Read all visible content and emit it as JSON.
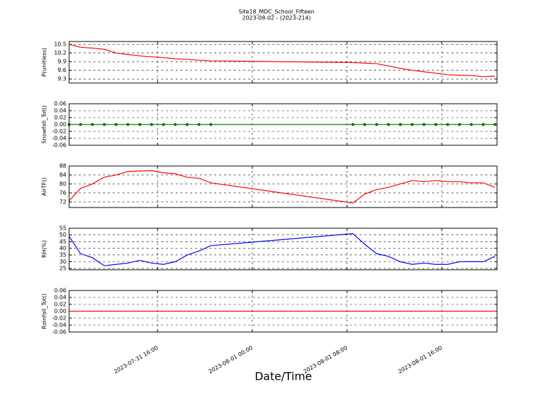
{
  "title": "Site18_MDC_School_Fifteen",
  "subtitle": "2023-08-02 - (2023-214)",
  "x_label": "Date/Time",
  "xlim": [
    "2023-07-31 08:32",
    "2023-08-01 20:40"
  ],
  "xticks": [
    "2023-07-31 16:00",
    "2023-08-01 00:00",
    "2023-08-01 08:00",
    "2023-08-01 16:00"
  ],
  "grid": true,
  "chart_data": [
    {
      "type": "line",
      "y_label": "P(unitless)",
      "ylim": [
        9.16,
        10.6
      ],
      "yticks": [
        9.3,
        9.6,
        9.9,
        10.2,
        10.5
      ],
      "x": [
        "2023-07-31 08:32",
        "2023-07-31 09:30",
        "2023-07-31 10:30",
        "2023-07-31 11:30",
        "2023-07-31 12:30",
        "2023-07-31 13:30",
        "2023-07-31 14:30",
        "2023-07-31 15:30",
        "2023-07-31 16:30",
        "2023-07-31 17:30",
        "2023-07-31 18:30",
        "2023-07-31 19:30",
        "2023-07-31 20:30",
        "2023-08-01 08:30",
        "2023-08-01 09:30",
        "2023-08-01 10:30",
        "2023-08-01 11:30",
        "2023-08-01 12:30",
        "2023-08-01 13:30",
        "2023-08-01 14:30",
        "2023-08-01 15:30",
        "2023-08-01 16:30",
        "2023-08-01 17:30",
        "2023-08-01 18:30",
        "2023-08-01 19:30",
        "2023-08-01 20:30"
      ],
      "series": [
        {
          "color": "#ff0000",
          "markers": false,
          "values": [
            10.5,
            10.4,
            10.37,
            10.33,
            10.2,
            10.15,
            10.1,
            10.07,
            10.04,
            10.0,
            9.98,
            9.95,
            9.93,
            9.87,
            9.85,
            9.83,
            9.75,
            9.67,
            9.6,
            9.55,
            9.5,
            9.45,
            9.43,
            9.42,
            9.38,
            9.4
          ]
        }
      ]
    },
    {
      "type": "line",
      "y_label": "Snowfall_Tot()",
      "ylim": [
        -0.06,
        0.06
      ],
      "yticks": [
        -0.06,
        -0.04,
        -0.02,
        {
          "value": 0,
          "label": "0.00"
        },
        0.02,
        0.04,
        0.06
      ],
      "x": [
        "2023-07-31 08:32",
        "2023-07-31 09:30",
        "2023-07-31 10:30",
        "2023-07-31 11:30",
        "2023-07-31 12:30",
        "2023-07-31 13:30",
        "2023-07-31 14:30",
        "2023-07-31 15:30",
        "2023-07-31 16:30",
        "2023-07-31 17:30",
        "2023-07-31 18:30",
        "2023-07-31 19:30",
        "2023-07-31 20:30",
        "2023-08-01 08:30",
        "2023-08-01 09:30",
        "2023-08-01 10:30",
        "2023-08-01 11:30",
        "2023-08-01 12:30",
        "2023-08-01 13:30",
        "2023-08-01 14:30",
        "2023-08-01 15:30",
        "2023-08-01 16:30",
        "2023-08-01 17:30",
        "2023-08-01 18:30",
        "2023-08-01 19:30",
        "2023-08-01 20:30"
      ],
      "series": [
        {
          "color": "#008000",
          "markers": true,
          "values": [
            0,
            0,
            0,
            0,
            0,
            0,
            0,
            0,
            0,
            0,
            0,
            0,
            0,
            0,
            0,
            0,
            0,
            0,
            0,
            0,
            0,
            0,
            0,
            0,
            0,
            0
          ]
        }
      ]
    },
    {
      "type": "line",
      "y_label": "AirTF()",
      "ylim": [
        69.5,
        88
      ],
      "yticks": [
        72,
        76,
        80,
        84,
        88
      ],
      "x": [
        "2023-07-31 08:32",
        "2023-07-31 09:30",
        "2023-07-31 10:30",
        "2023-07-31 11:30",
        "2023-07-31 12:30",
        "2023-07-31 13:30",
        "2023-07-31 14:30",
        "2023-07-31 15:30",
        "2023-07-31 16:30",
        "2023-07-31 17:30",
        "2023-07-31 18:30",
        "2023-07-31 19:30",
        "2023-07-31 20:30",
        "2023-08-01 08:30",
        "2023-08-01 09:30",
        "2023-08-01 10:30",
        "2023-08-01 11:30",
        "2023-08-01 12:30",
        "2023-08-01 13:30",
        "2023-08-01 14:30",
        "2023-08-01 15:30",
        "2023-08-01 16:30",
        "2023-08-01 17:30",
        "2023-08-01 18:30",
        "2023-08-01 19:30",
        "2023-08-01 20:30"
      ],
      "series": [
        {
          "color": "#ff0000",
          "markers": false,
          "values": [
            72.5,
            78,
            80,
            83,
            84,
            85.5,
            85.8,
            86,
            85,
            84.5,
            83,
            82.5,
            80.5,
            71.5,
            75.5,
            77.5,
            78.5,
            80,
            81.5,
            81,
            81.5,
            81,
            81,
            80.5,
            80.5,
            78.5
          ]
        }
      ]
    },
    {
      "type": "line",
      "y_label": "RH(%)",
      "ylim": [
        24,
        55
      ],
      "yticks": [
        25,
        30,
        35,
        40,
        45,
        50,
        55
      ],
      "x": [
        "2023-07-31 08:32",
        "2023-07-31 09:30",
        "2023-07-31 10:30",
        "2023-07-31 11:30",
        "2023-07-31 12:30",
        "2023-07-31 13:30",
        "2023-07-31 14:30",
        "2023-07-31 15:30",
        "2023-07-31 16:30",
        "2023-07-31 17:30",
        "2023-07-31 18:30",
        "2023-07-31 19:30",
        "2023-07-31 20:30",
        "2023-08-01 08:30",
        "2023-08-01 09:30",
        "2023-08-01 10:30",
        "2023-08-01 11:30",
        "2023-08-01 12:30",
        "2023-08-01 13:30",
        "2023-08-01 14:30",
        "2023-08-01 15:30",
        "2023-08-01 16:30",
        "2023-08-01 17:30",
        "2023-08-01 18:30",
        "2023-08-01 19:30",
        "2023-08-01 20:30"
      ],
      "series": [
        {
          "color": "#0000ff",
          "markers": false,
          "values": [
            49,
            36,
            33,
            27,
            28,
            29,
            31,
            29,
            28,
            30,
            35,
            38,
            42,
            51,
            43,
            36,
            34,
            30,
            28,
            29,
            28,
            28,
            30,
            30,
            30,
            34
          ]
        }
      ]
    },
    {
      "type": "line",
      "y_label": "Rainfall_Tot()",
      "ylim": [
        -0.06,
        0.06
      ],
      "yticks": [
        -0.06,
        -0.04,
        -0.02,
        {
          "value": 0,
          "label": "0.00"
        },
        0.02,
        0.04,
        0.06
      ],
      "x": [
        "2023-07-31 08:32",
        "2023-07-31 09:30",
        "2023-07-31 10:30",
        "2023-07-31 11:30",
        "2023-07-31 12:30",
        "2023-07-31 13:30",
        "2023-07-31 14:30",
        "2023-07-31 15:30",
        "2023-07-31 16:30",
        "2023-07-31 17:30",
        "2023-07-31 18:30",
        "2023-07-31 19:30",
        "2023-07-31 20:30",
        "2023-08-01 08:30",
        "2023-08-01 09:30",
        "2023-08-01 10:30",
        "2023-08-01 11:30",
        "2023-08-01 12:30",
        "2023-08-01 13:30",
        "2023-08-01 14:30",
        "2023-08-01 15:30",
        "2023-08-01 16:30",
        "2023-08-01 17:30",
        "2023-08-01 18:30",
        "2023-08-01 19:30",
        "2023-08-01 20:30"
      ],
      "series": [
        {
          "color": "#ff0000",
          "markers": false,
          "values": [
            0,
            0,
            0,
            0,
            0,
            0,
            0,
            0,
            0,
            0,
            0,
            0,
            0,
            0,
            0,
            0,
            0,
            0,
            0,
            0,
            0,
            0,
            0,
            0,
            0,
            0
          ]
        }
      ]
    }
  ]
}
